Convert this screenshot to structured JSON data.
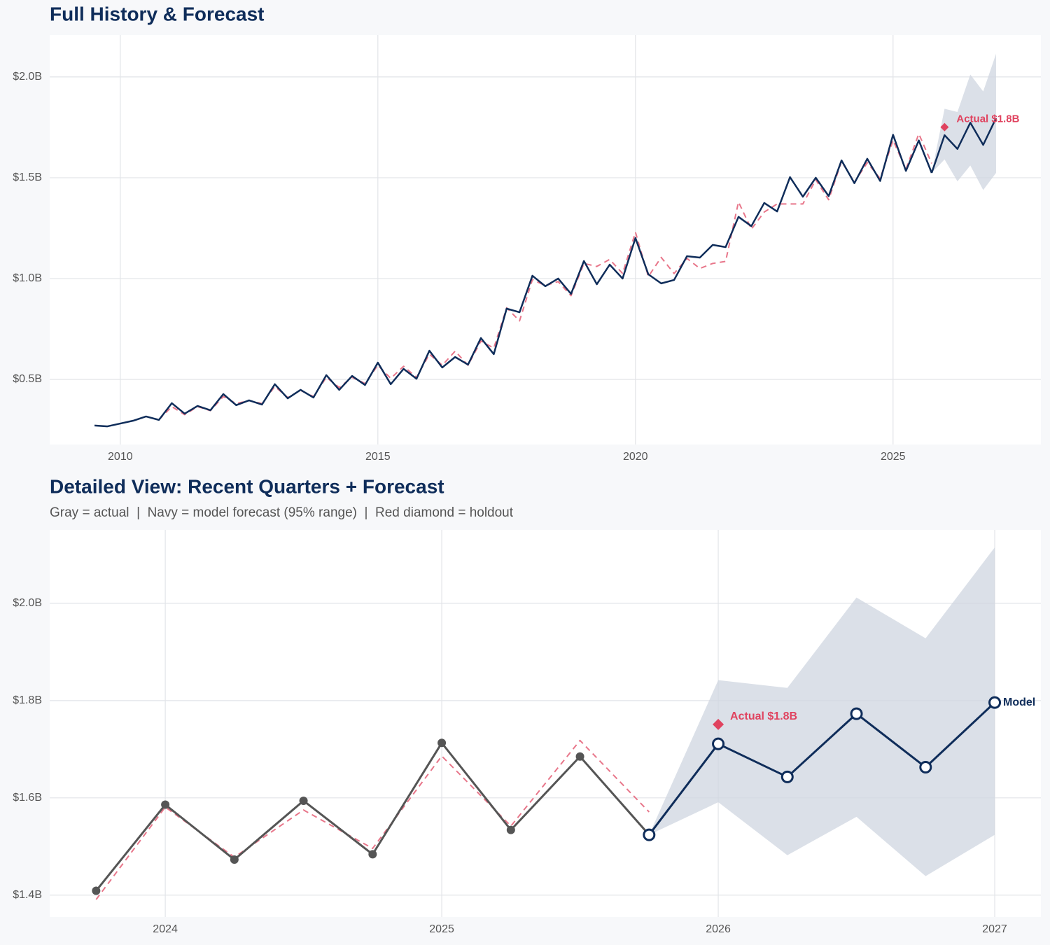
{
  "chart_data": [
    {
      "type": "line",
      "title": "Full History & Forecast",
      "xlim": [
        2008.63,
        2027.87
      ],
      "ylim": [
        0.177,
        2.208
      ],
      "xticks": [
        2010,
        2015,
        2020,
        2025
      ],
      "yticks": [
        {
          "value": 0.5,
          "label": "$0.5B"
        },
        {
          "value": 1.0,
          "label": "$1.0B"
        },
        {
          "value": 1.5,
          "label": "$1.5B"
        },
        {
          "value": 2.0,
          "label": "$2.0B"
        }
      ],
      "grid": true,
      "band": {
        "color": "#cfd6e0",
        "x": [
          2025.75,
          2026,
          2026.25,
          2026.5,
          2026.75,
          2027
        ],
        "lower": [
          1.524,
          1.591,
          1.482,
          1.561,
          1.439,
          1.524
        ],
        "upper": [
          1.524,
          1.842,
          1.826,
          2.012,
          1.928,
          2.115
        ]
      },
      "series": [
        {
          "color": "#e8768a",
          "dashed": true,
          "x": [
            2009.5,
            2009.75,
            2010,
            2010.25,
            2010.5,
            2010.75,
            2011,
            2011.25,
            2011.5,
            2011.75,
            2012,
            2012.25,
            2012.5,
            2012.75,
            2013,
            2013.25,
            2013.5,
            2013.75,
            2014,
            2014.25,
            2014.5,
            2014.75,
            2015,
            2015.25,
            2015.5,
            2015.75,
            2016,
            2016.25,
            2016.5,
            2016.75,
            2017,
            2017.25,
            2017.5,
            2017.75,
            2018,
            2018.25,
            2018.5,
            2018.75,
            2019,
            2019.25,
            2019.5,
            2019.75,
            2020,
            2020.25,
            2020.5,
            2020.75,
            2021,
            2021.25,
            2021.5,
            2021.75,
            2022,
            2022.25,
            2022.5,
            2022.75,
            2023,
            2023.25,
            2023.5,
            2023.75,
            2024,
            2024.25,
            2024.5,
            2024.75,
            2025,
            2025.25,
            2025.5,
            2025.75
          ],
          "values": [
            null,
            null,
            null,
            null,
            null,
            0.3,
            0.365,
            0.325,
            0.365,
            0.345,
            0.415,
            0.38,
            0.395,
            0.38,
            0.465,
            0.41,
            0.445,
            0.415,
            0.51,
            0.46,
            0.51,
            0.48,
            0.57,
            0.505,
            0.565,
            0.51,
            0.625,
            0.57,
            0.64,
            0.57,
            0.69,
            0.655,
            0.855,
            0.79,
            0.995,
            0.965,
            0.985,
            0.915,
            1.075,
            1.06,
            1.095,
            1.025,
            1.23,
            1.01,
            1.105,
            1.025,
            1.1,
            1.05,
            1.075,
            1.085,
            1.38,
            1.245,
            1.33,
            1.37,
            1.37,
            1.37,
            1.49,
            1.391,
            1.581,
            1.478,
            1.575,
            1.496,
            1.686,
            1.542,
            1.718,
            1.571
          ]
        },
        {
          "color": "#0f2d5a",
          "x": [
            2009.5,
            2009.75,
            2010,
            2010.25,
            2010.5,
            2010.75,
            2011,
            2011.25,
            2011.5,
            2011.75,
            2012,
            2012.25,
            2012.5,
            2012.75,
            2013,
            2013.25,
            2013.5,
            2013.75,
            2014,
            2014.25,
            2014.5,
            2014.75,
            2015,
            2015.25,
            2015.5,
            2015.75,
            2016,
            2016.25,
            2016.5,
            2016.75,
            2017,
            2017.25,
            2017.5,
            2017.75,
            2018,
            2018.25,
            2018.5,
            2018.75,
            2019,
            2019.25,
            2019.5,
            2019.75,
            2020,
            2020.25,
            2020.5,
            2020.75,
            2021,
            2021.25,
            2021.5,
            2021.75,
            2022,
            2022.25,
            2022.5,
            2022.75,
            2023,
            2023.25,
            2023.5,
            2023.75,
            2024,
            2024.25,
            2024.5,
            2024.75,
            2025,
            2025.25,
            2025.5,
            2025.75
          ],
          "values": [
            0.271,
            0.267,
            0.281,
            0.295,
            0.316,
            0.299,
            0.382,
            0.33,
            0.368,
            0.347,
            0.427,
            0.372,
            0.396,
            0.375,
            0.476,
            0.406,
            0.448,
            0.41,
            0.521,
            0.448,
            0.517,
            0.472,
            0.583,
            0.476,
            0.552,
            0.503,
            0.642,
            0.559,
            0.611,
            0.573,
            0.705,
            0.625,
            0.851,
            0.833,
            1.014,
            0.962,
            1.0,
            0.924,
            1.087,
            0.972,
            1.069,
            1.0,
            1.201,
            1.021,
            0.976,
            0.993,
            1.111,
            1.104,
            1.167,
            1.156,
            1.306,
            1.26,
            1.375,
            1.333,
            1.503,
            1.406,
            1.5,
            1.409,
            1.586,
            1.473,
            1.594,
            1.484,
            1.713,
            1.534,
            1.685,
            1.524
          ]
        },
        {
          "color": "#0f2d5a",
          "x": [
            2025.75,
            2026,
            2026.25,
            2026.5,
            2026.75,
            2027
          ],
          "values": [
            1.524,
            1.711,
            1.643,
            1.773,
            1.663,
            1.796
          ]
        }
      ],
      "holdout": {
        "x": 2026,
        "value": 1.751,
        "label": "Actual $1.8B",
        "color": "#e0435f"
      }
    },
    {
      "type": "line",
      "title": "Detailed View: Recent Quarters + Forecast",
      "subtitle": "Gray = actual  |  Navy = model forecast (95% range)  |  Red diamond = holdout",
      "xlim": [
        2023.582,
        2027.167
      ],
      "ylim": [
        1.355,
        2.151
      ],
      "xticks": [
        2024,
        2025,
        2026,
        2027
      ],
      "yticks": [
        {
          "value": 1.4,
          "label": "$1.4B"
        },
        {
          "value": 1.6,
          "label": "$1.6B"
        },
        {
          "value": 1.8,
          "label": "$1.8B"
        },
        {
          "value": 2.0,
          "label": "$2.0B"
        }
      ],
      "grid": true,
      "band": {
        "color": "#cfd6e0",
        "x": [
          2025.75,
          2026,
          2026.25,
          2026.5,
          2026.75,
          2027
        ],
        "lower": [
          1.524,
          1.591,
          1.482,
          1.561,
          1.439,
          1.524
        ],
        "upper": [
          1.524,
          1.842,
          1.826,
          2.012,
          1.928,
          2.115
        ]
      },
      "series": [
        {
          "color": "#e8768a",
          "dashed": true,
          "x": [
            2023.75,
            2024,
            2024.25,
            2024.5,
            2024.75,
            2025,
            2025.25,
            2025.5,
            2025.75
          ],
          "values": [
            1.391,
            1.581,
            1.478,
            1.575,
            1.496,
            1.686,
            1.542,
            1.718,
            1.571
          ]
        },
        {
          "color": "#555555",
          "markers": "filled",
          "x": [
            2023.75,
            2024,
            2024.25,
            2024.5,
            2024.75,
            2025,
            2025.25,
            2025.5,
            2025.75
          ],
          "values": [
            1.409,
            1.586,
            1.473,
            1.594,
            1.484,
            1.713,
            1.534,
            1.685,
            1.524
          ]
        },
        {
          "color": "#0f2d5a",
          "markers": "open",
          "end_label": "Model",
          "x": [
            2025.75,
            2026,
            2026.25,
            2026.5,
            2026.75,
            2027
          ],
          "values": [
            1.524,
            1.711,
            1.643,
            1.773,
            1.663,
            1.796
          ]
        }
      ],
      "holdout": {
        "x": 2026,
        "value": 1.751,
        "label": "Actual $1.8B",
        "color": "#e0435f"
      }
    }
  ]
}
